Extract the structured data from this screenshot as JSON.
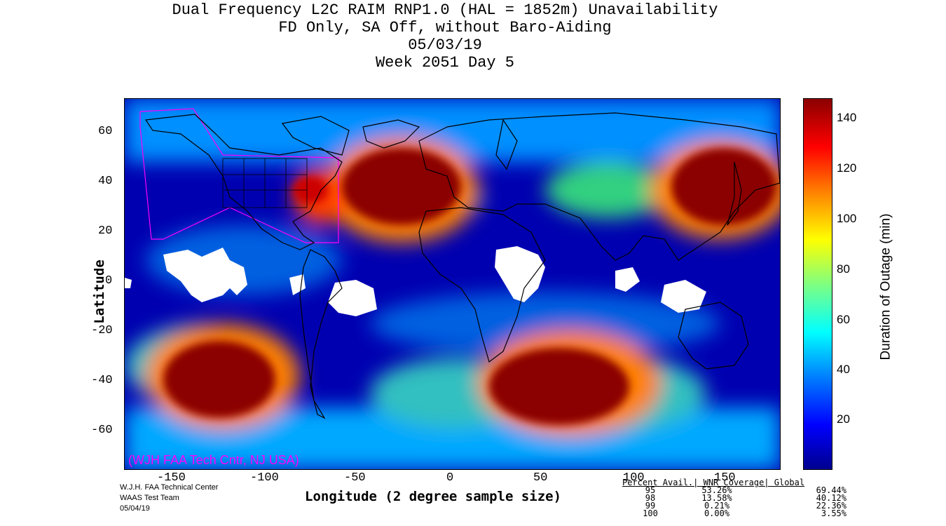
{
  "title_lines": [
    "Dual Frequency L2C RAIM RNP1.0 (HAL = 1852m) Unavailability",
    "FD Only, SA Off, without Baro-Aiding",
    "05/03/19",
    "Week 2051 Day 5"
  ],
  "axes": {
    "lon_label": "Longitude (2 degree sample size)",
    "lat_label": "Latitude",
    "lon_ticks": [
      "-150",
      "-100",
      "-50",
      "0",
      "50",
      "100",
      "150"
    ],
    "lat_ticks": [
      "60",
      "40",
      "20",
      "0",
      "-20",
      "-40",
      "-60"
    ]
  },
  "credit": "(WJH FAA Tech Cntr, NJ USA)",
  "footer": [
    "W.J.H. FAA Technical Center",
    "WAAS Test Team",
    "05/04/19"
  ],
  "colorbar": {
    "label": "Duration of Outage (min)",
    "ticks": [
      "140",
      "120",
      "100",
      "80",
      "60",
      "40",
      "20"
    ]
  },
  "stats": {
    "header": "Percent Avail.| WNR Coverage| Global",
    "rows": [
      {
        "pct": "95",
        "wnr": "53.26%",
        "global": "69.44%"
      },
      {
        "pct": "98",
        "wnr": "13.58%",
        "global": "40.12%"
      },
      {
        "pct": "99",
        "wnr": "0.21%",
        "global": "22.36%"
      },
      {
        "pct": "100",
        "wnr": "0.00%",
        "global": "3.55%"
      }
    ]
  },
  "chart_data": {
    "type": "heatmap",
    "xlim": [
      -180,
      180
    ],
    "ylim": [
      -74,
      74
    ],
    "colorbar_range": [
      0,
      150
    ],
    "high_outage_regions": [
      {
        "lon": -35,
        "lat": 40,
        "value": 150
      },
      {
        "lon": 150,
        "lat": 40,
        "value": 150
      },
      {
        "lon": -130,
        "lat": -40,
        "value": 150
      },
      {
        "lon": 60,
        "lat": -40,
        "value": 150
      },
      {
        "lon": -75,
        "lat": 35,
        "value": 130
      }
    ]
  }
}
